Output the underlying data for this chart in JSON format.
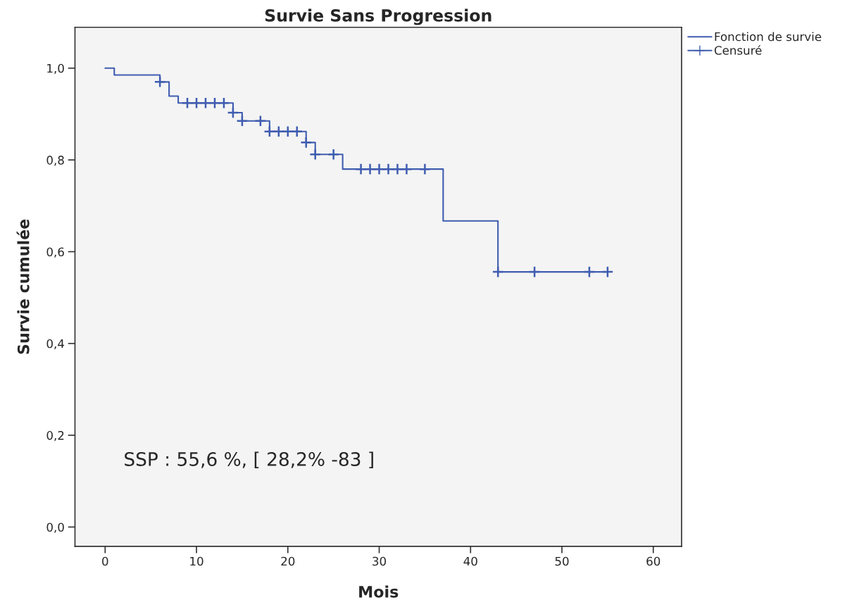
{
  "chart_data": {
    "type": "step",
    "title": "Survie Sans Progression",
    "xlabel": "Mois",
    "ylabel": "Survie cumulée",
    "series": [
      {
        "name": "Fonction de survie",
        "color": "#3f5cb0",
        "x": [
          0,
          1,
          6,
          7,
          8,
          14,
          15,
          18,
          22,
          23,
          26,
          37,
          43,
          55
        ],
        "values": [
          1.0,
          0.985,
          0.97,
          0.939,
          0.924,
          0.903,
          0.885,
          0.862,
          0.838,
          0.812,
          0.78,
          0.667,
          0.556,
          0.556
        ]
      },
      {
        "name": "Censuré",
        "type": "scatter",
        "marker": "cross",
        "color": "#3f5cb0",
        "x": [
          6,
          9,
          10,
          11,
          12,
          13,
          14,
          15,
          17,
          18,
          19,
          20,
          21,
          22,
          23,
          25,
          28,
          29,
          30,
          31,
          32,
          33,
          35,
          43,
          47,
          53,
          55
        ],
        "values": [
          0.97,
          0.924,
          0.924,
          0.924,
          0.924,
          0.924,
          0.903,
          0.885,
          0.885,
          0.862,
          0.862,
          0.862,
          0.862,
          0.838,
          0.812,
          0.812,
          0.78,
          0.78,
          0.78,
          0.78,
          0.78,
          0.78,
          0.78,
          0.556,
          0.556,
          0.556,
          0.556
        ]
      }
    ],
    "xlim": [
      -3.3,
      63.1
    ],
    "ylim": [
      -0.042,
      1.089
    ],
    "xticks": [
      0,
      10,
      20,
      30,
      40,
      50,
      60
    ],
    "yticks": [
      {
        "value": 0.0,
        "label": "0,0"
      },
      {
        "value": 0.2,
        "label": "0,2"
      },
      {
        "value": 0.4,
        "label": "0,4"
      },
      {
        "value": 0.6,
        "label": "0,6"
      },
      {
        "value": 0.8,
        "label": "0,8"
      },
      {
        "value": 1.0,
        "label": "1,0"
      }
    ],
    "grid": false,
    "legend": "top right",
    "annotations": [
      "SSP : 55,6 %, [ 28,2% -83 ]"
    ]
  }
}
